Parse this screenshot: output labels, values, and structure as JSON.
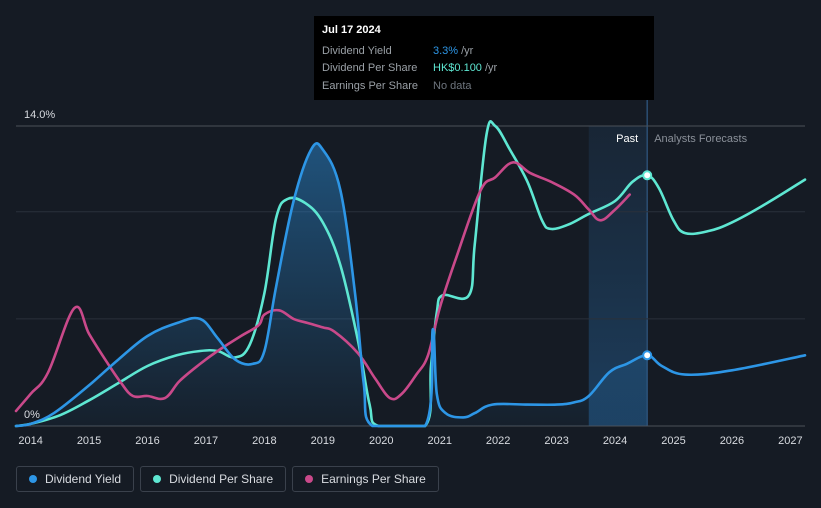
{
  "tooltip": {
    "date": "Jul 17 2024",
    "rows": [
      {
        "label": "Dividend Yield",
        "value": "3.3%",
        "unit": "/yr",
        "color": "#2d96e6"
      },
      {
        "label": "Dividend Per Share",
        "value": "HK$0.100",
        "unit": "/yr",
        "color": "#5ee7d2"
      },
      {
        "label": "Earnings Per Share",
        "value": "No data",
        "unit": "",
        "color": "#6e757e"
      }
    ]
  },
  "legend": [
    {
      "label": "Dividend Yield",
      "color": "#2d96e6"
    },
    {
      "label": "Dividend Per Share",
      "color": "#5ee7d2"
    },
    {
      "label": "Earnings Per Share",
      "color": "#c9498a"
    }
  ],
  "chart_data": {
    "type": "line",
    "title": "",
    "xlabel": "",
    "ylabel": "",
    "y_top_label": "14.0%",
    "y_bottom_label": "0%",
    "ylim": [
      0,
      14
    ],
    "xlim": [
      2013.75,
      2027.25
    ],
    "x_ticks": [
      "2014",
      "2015",
      "2016",
      "2017",
      "2018",
      "2019",
      "2020",
      "2021",
      "2022",
      "2023",
      "2024",
      "2025",
      "2026",
      "2027"
    ],
    "past_label": "Past",
    "forecast_label": "Analysts Forecasts",
    "past_band_start": 2023.55,
    "forecast_start": 2024.55,
    "highlight_x": 2024.55,
    "series": [
      {
        "name": "Dividend Yield",
        "color": "#2d96e6",
        "points": [
          [
            2013.75,
            0
          ],
          [
            2014.0,
            0.1
          ],
          [
            2014.4,
            0.6
          ],
          [
            2015.0,
            1.9
          ],
          [
            2015.5,
            3.1
          ],
          [
            2016.0,
            4.2
          ],
          [
            2016.5,
            4.8
          ],
          [
            2016.9,
            5.0
          ],
          [
            2017.2,
            4.1
          ],
          [
            2017.5,
            3.1
          ],
          [
            2017.8,
            2.9
          ],
          [
            2018.0,
            3.5
          ],
          [
            2018.2,
            6.5
          ],
          [
            2018.5,
            10.5
          ],
          [
            2018.8,
            12.9
          ],
          [
            2019.0,
            12.9
          ],
          [
            2019.3,
            11.0
          ],
          [
            2019.55,
            6.2
          ],
          [
            2019.7,
            2.0
          ],
          [
            2019.85,
            0
          ],
          [
            2020.75,
            0
          ],
          [
            2020.88,
            4.5
          ],
          [
            2020.95,
            1.5
          ],
          [
            2021.1,
            0.6
          ],
          [
            2021.4,
            0.4
          ],
          [
            2021.6,
            0.6
          ],
          [
            2021.9,
            1.0
          ],
          [
            2022.5,
            1.0
          ],
          [
            2023.0,
            1.0
          ],
          [
            2023.3,
            1.1
          ],
          [
            2023.55,
            1.4
          ],
          [
            2023.9,
            2.5
          ],
          [
            2024.2,
            2.9
          ],
          [
            2024.55,
            3.3
          ],
          [
            2024.8,
            2.8
          ],
          [
            2025.2,
            2.4
          ],
          [
            2026.0,
            2.6
          ],
          [
            2027.25,
            3.3
          ]
        ]
      },
      {
        "name": "Dividend Per Share",
        "color": "#5ee7d2",
        "points": [
          [
            2013.75,
            0
          ],
          [
            2014.0,
            0.1
          ],
          [
            2014.5,
            0.5
          ],
          [
            2015.0,
            1.2
          ],
          [
            2015.5,
            2.0
          ],
          [
            2016.0,
            2.8
          ],
          [
            2016.5,
            3.3
          ],
          [
            2016.9,
            3.5
          ],
          [
            2017.2,
            3.5
          ],
          [
            2017.5,
            3.2
          ],
          [
            2017.75,
            3.8
          ],
          [
            2018.0,
            6.2
          ],
          [
            2018.2,
            9.7
          ],
          [
            2018.4,
            10.6
          ],
          [
            2018.7,
            10.4
          ],
          [
            2019.0,
            9.5
          ],
          [
            2019.3,
            7.5
          ],
          [
            2019.6,
            4.0
          ],
          [
            2019.8,
            1.0
          ],
          [
            2019.95,
            0
          ],
          [
            2020.75,
            0
          ],
          [
            2020.85,
            2.8
          ],
          [
            2020.95,
            5.3
          ],
          [
            2021.05,
            6.1
          ],
          [
            2021.5,
            6.1
          ],
          [
            2021.6,
            8.5
          ],
          [
            2021.8,
            13.6
          ],
          [
            2021.95,
            14.0
          ],
          [
            2022.2,
            12.9
          ],
          [
            2022.5,
            11.4
          ],
          [
            2022.75,
            9.6
          ],
          [
            2022.9,
            9.2
          ],
          [
            2023.2,
            9.4
          ],
          [
            2023.55,
            9.9
          ],
          [
            2024.0,
            10.5
          ],
          [
            2024.3,
            11.4
          ],
          [
            2024.55,
            11.7
          ],
          [
            2024.75,
            11.1
          ],
          [
            2025.0,
            9.6
          ],
          [
            2025.2,
            9.0
          ],
          [
            2025.6,
            9.1
          ],
          [
            2026.0,
            9.5
          ],
          [
            2026.6,
            10.4
          ],
          [
            2027.25,
            11.5
          ]
        ]
      },
      {
        "name": "Earnings Per Share",
        "color": "#c9498a",
        "points": [
          [
            2013.75,
            0.7
          ],
          [
            2014.0,
            1.5
          ],
          [
            2014.3,
            2.5
          ],
          [
            2014.75,
            5.5
          ],
          [
            2015.0,
            4.3
          ],
          [
            2015.3,
            3.0
          ],
          [
            2015.55,
            2.0
          ],
          [
            2015.75,
            1.4
          ],
          [
            2016.0,
            1.4
          ],
          [
            2016.3,
            1.3
          ],
          [
            2016.55,
            2.1
          ],
          [
            2016.9,
            2.9
          ],
          [
            2017.2,
            3.5
          ],
          [
            2017.6,
            4.2
          ],
          [
            2017.9,
            4.7
          ],
          [
            2018.0,
            5.2
          ],
          [
            2018.25,
            5.4
          ],
          [
            2018.5,
            5.0
          ],
          [
            2018.75,
            4.8
          ],
          [
            2019.0,
            4.6
          ],
          [
            2019.2,
            4.4
          ],
          [
            2019.6,
            3.4
          ],
          [
            2019.9,
            2.2
          ],
          [
            2020.15,
            1.3
          ],
          [
            2020.35,
            1.5
          ],
          [
            2020.6,
            2.4
          ],
          [
            2020.8,
            3.3
          ],
          [
            2021.0,
            5.5
          ],
          [
            2021.3,
            8.0
          ],
          [
            2021.7,
            11.0
          ],
          [
            2021.95,
            11.6
          ],
          [
            2022.25,
            12.3
          ],
          [
            2022.55,
            11.8
          ],
          [
            2022.9,
            11.4
          ],
          [
            2023.3,
            10.8
          ],
          [
            2023.55,
            10.1
          ],
          [
            2023.75,
            9.6
          ],
          [
            2024.0,
            10.1
          ],
          [
            2024.25,
            10.8
          ]
        ]
      }
    ]
  }
}
